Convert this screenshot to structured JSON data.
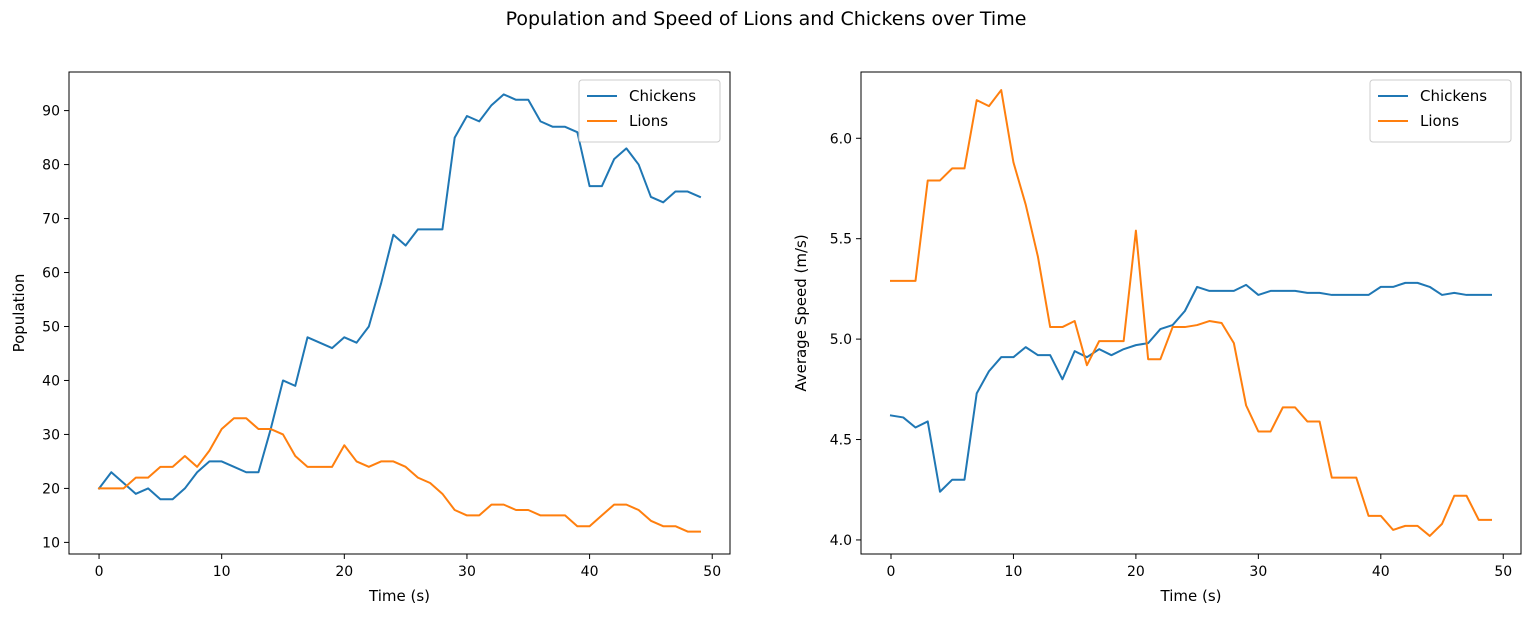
{
  "figure": {
    "title": "Population and Speed of Lions and Chickens over Time"
  },
  "chart_data": [
    {
      "type": "line",
      "title": "",
      "xlabel": "Time (s)",
      "ylabel": "Population",
      "xlim": [
        -2.45,
        51.45
      ],
      "ylim": [
        7.85,
        97.15
      ],
      "xticks": [
        0,
        10,
        20,
        30,
        40,
        50
      ],
      "yticks": [
        10,
        20,
        30,
        40,
        50,
        60,
        70,
        80,
        90
      ],
      "legend": "top-right",
      "grid": false,
      "series": [
        {
          "name": "Chickens",
          "color": "#1f77b4",
          "x": [
            0,
            1,
            2,
            3,
            4,
            5,
            6,
            7,
            8,
            9,
            10,
            11,
            12,
            13,
            14,
            15,
            16,
            17,
            18,
            19,
            20,
            21,
            22,
            23,
            24,
            25,
            26,
            27,
            28,
            29,
            30,
            31,
            32,
            33,
            34,
            35,
            36,
            37,
            38,
            39,
            40,
            41,
            42,
            43,
            44,
            45,
            46,
            47,
            48,
            49
          ],
          "values": [
            20,
            23,
            21,
            19,
            20,
            18,
            18,
            20,
            23,
            25,
            25,
            24,
            23,
            23,
            31,
            40,
            39,
            48,
            47,
            46,
            48,
            47,
            50,
            58,
            67,
            65,
            68,
            68,
            68,
            85,
            89,
            88,
            91,
            93,
            92,
            92,
            88,
            87,
            87,
            86,
            76,
            76,
            81,
            83,
            80,
            74,
            73,
            75,
            75,
            74
          ]
        },
        {
          "name": "Lions",
          "color": "#ff7f0e",
          "x": [
            0,
            1,
            2,
            3,
            4,
            5,
            6,
            7,
            8,
            9,
            10,
            11,
            12,
            13,
            14,
            15,
            16,
            17,
            18,
            19,
            20,
            21,
            22,
            23,
            24,
            25,
            26,
            27,
            28,
            29,
            30,
            31,
            32,
            33,
            34,
            35,
            36,
            37,
            38,
            39,
            40,
            41,
            42,
            43,
            44,
            45,
            46,
            47,
            48,
            49
          ],
          "values": [
            20,
            20,
            20,
            22,
            22,
            24,
            24,
            26,
            24,
            27,
            31,
            33,
            33,
            31,
            31,
            30,
            26,
            24,
            24,
            24,
            28,
            25,
            24,
            25,
            25,
            24,
            22,
            21,
            19,
            16,
            15,
            15,
            17,
            17,
            16,
            16,
            15,
            15,
            15,
            13,
            13,
            15,
            17,
            17,
            16,
            14,
            13,
            13,
            12,
            12
          ]
        }
      ]
    },
    {
      "type": "line",
      "title": "",
      "xlabel": "Time (s)",
      "ylabel": "Average Speed (m/s)",
      "xlim": [
        -2.45,
        51.45
      ],
      "ylim": [
        3.93,
        6.33
      ],
      "xticks": [
        0,
        10,
        20,
        30,
        40,
        50
      ],
      "yticks": [
        4.0,
        4.5,
        5.0,
        5.5,
        6.0
      ],
      "ytick_labels": [
        "4.0",
        "4.5",
        "5.0",
        "5.5",
        "6.0"
      ],
      "legend": "top-right",
      "grid": false,
      "series": [
        {
          "name": "Chickens",
          "color": "#1f77b4",
          "x": [
            0,
            1,
            2,
            3,
            4,
            5,
            6,
            7,
            8,
            9,
            10,
            11,
            12,
            13,
            14,
            15,
            16,
            17,
            18,
            19,
            20,
            21,
            22,
            23,
            24,
            25,
            26,
            27,
            28,
            29,
            30,
            31,
            32,
            33,
            34,
            35,
            36,
            37,
            38,
            39,
            40,
            41,
            42,
            43,
            44,
            45,
            46,
            47,
            48,
            49
          ],
          "values": [
            4.62,
            4.61,
            4.56,
            4.59,
            4.24,
            4.3,
            4.3,
            4.73,
            4.84,
            4.91,
            4.91,
            4.96,
            4.92,
            4.92,
            4.8,
            4.94,
            4.91,
            4.95,
            4.92,
            4.95,
            4.97,
            4.98,
            5.05,
            5.07,
            5.14,
            5.26,
            5.24,
            5.24,
            5.24,
            5.27,
            5.22,
            5.24,
            5.24,
            5.24,
            5.23,
            5.23,
            5.22,
            5.22,
            5.22,
            5.22,
            5.26,
            5.26,
            5.28,
            5.28,
            5.26,
            5.22,
            5.23,
            5.22,
            5.22,
            5.22
          ]
        },
        {
          "name": "Lions",
          "color": "#ff7f0e",
          "x": [
            0,
            1,
            2,
            3,
            4,
            5,
            6,
            7,
            8,
            9,
            10,
            11,
            12,
            13,
            14,
            15,
            16,
            17,
            18,
            19,
            20,
            21,
            22,
            23,
            24,
            25,
            26,
            27,
            28,
            29,
            30,
            31,
            32,
            33,
            34,
            35,
            36,
            37,
            38,
            39,
            40,
            41,
            42,
            43,
            44,
            45,
            46,
            47,
            48,
            49
          ],
          "values": [
            5.29,
            5.29,
            5.29,
            5.79,
            5.79,
            5.85,
            5.85,
            6.19,
            6.16,
            6.24,
            5.88,
            5.67,
            5.41,
            5.06,
            5.06,
            5.09,
            4.87,
            4.99,
            4.99,
            4.99,
            5.54,
            4.9,
            4.9,
            5.06,
            5.06,
            5.07,
            5.09,
            5.08,
            4.98,
            4.67,
            4.54,
            4.54,
            4.66,
            4.66,
            4.59,
            4.59,
            4.31,
            4.31,
            4.31,
            4.12,
            4.12,
            4.05,
            4.07,
            4.07,
            4.02,
            4.08,
            4.22,
            4.22,
            4.1,
            4.1
          ]
        }
      ]
    }
  ]
}
